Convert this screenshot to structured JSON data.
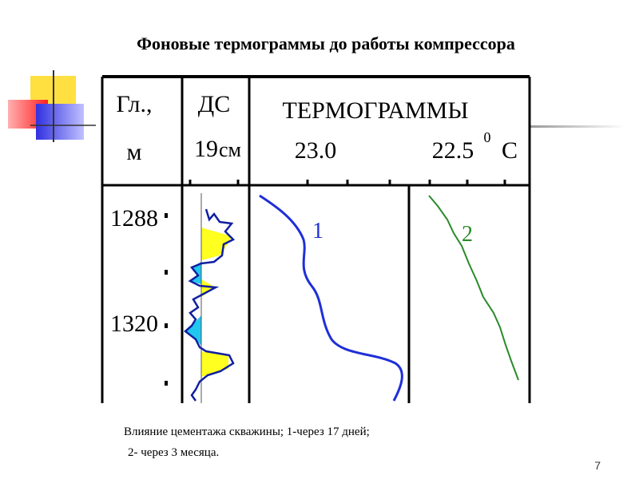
{
  "header": {
    "title": "Фоновые термограммы до работы компрессора"
  },
  "table": {
    "depth_header": [
      "Гл.,",
      "м"
    ],
    "ds_header": [
      "ДС",
      "19",
      "см"
    ],
    "thermo_header": "ТЕРМОГРАММЫ",
    "scale_1": "23.0",
    "scale_2": "22.5",
    "scale_2_sup": "0",
    "scale_2_unit": "С",
    "depth_labels": [
      "1288",
      "1320"
    ],
    "curve_labels": [
      "1",
      "2"
    ]
  },
  "caption": [
    "Влияние цементажа скважины; 1-через 17 дней;",
    "2- через 3 месяца."
  ],
  "slide_number": "7"
}
